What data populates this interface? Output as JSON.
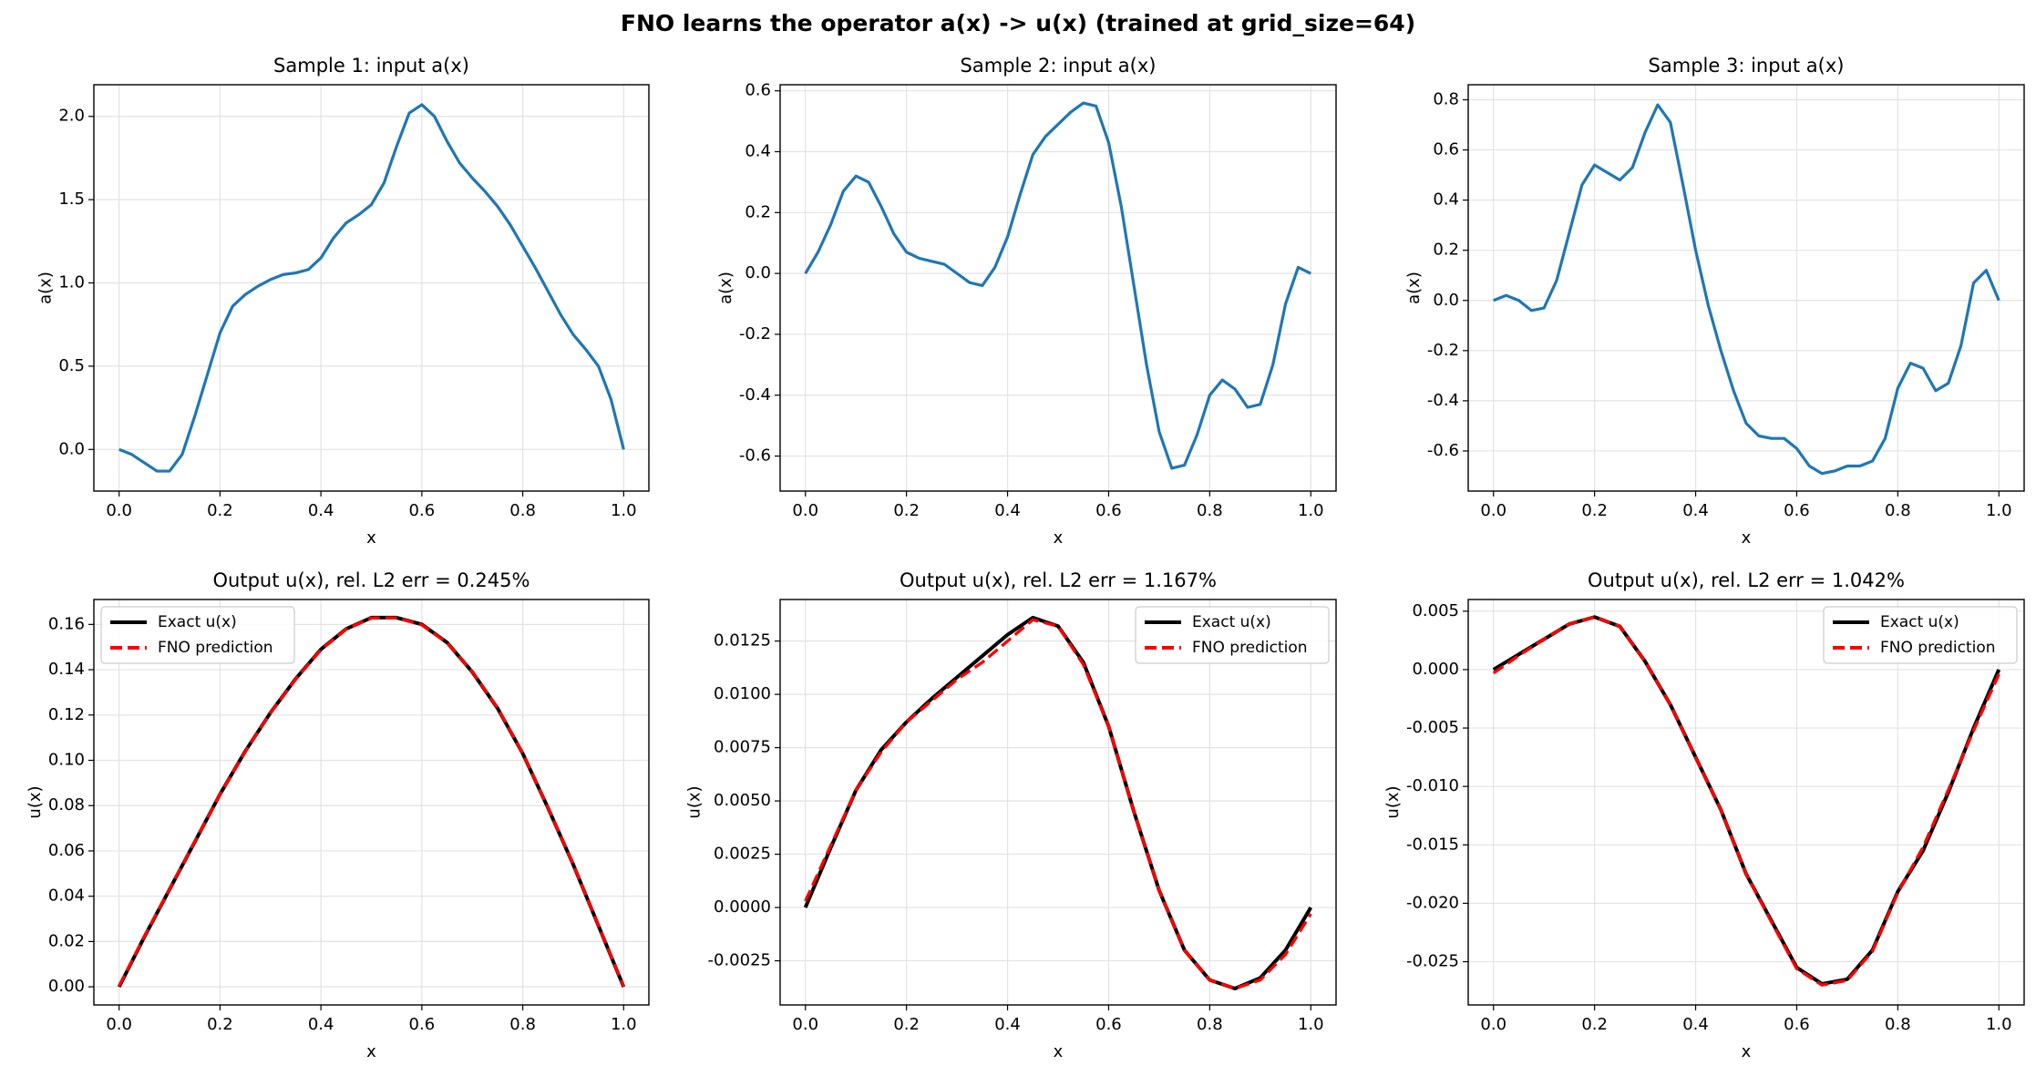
{
  "title": "FNO learns the operator a(x) -> u(x)  (trained at grid_size=64)",
  "chart_data": [
    {
      "type": "line",
      "title": "Sample 1: input a(x)",
      "x_label": "x",
      "y_label": "a(x)",
      "color": "#1f77b4",
      "grid": true,
      "x": [
        0,
        0.025,
        0.05,
        0.075,
        0.1,
        0.125,
        0.15,
        0.175,
        0.2,
        0.225,
        0.25,
        0.275,
        0.3,
        0.325,
        0.35,
        0.375,
        0.4,
        0.425,
        0.45,
        0.475,
        0.5,
        0.525,
        0.55,
        0.575,
        0.6,
        0.625,
        0.65,
        0.675,
        0.7,
        0.725,
        0.75,
        0.775,
        0.8,
        0.825,
        0.85,
        0.875,
        0.9,
        0.925,
        0.95,
        0.975,
        1
      ],
      "values": [
        0,
        -0.03,
        -0.08,
        -0.13,
        -0.13,
        -0.03,
        0.2,
        0.45,
        0.7,
        0.86,
        0.93,
        0.98,
        1.02,
        1.05,
        1.06,
        1.08,
        1.15,
        1.27,
        1.36,
        1.41,
        1.47,
        1.6,
        1.82,
        2.02,
        2.07,
        2.0,
        1.85,
        1.72,
        1.63,
        1.55,
        1.46,
        1.35,
        1.22,
        1.09,
        0.95,
        0.81,
        0.69,
        0.6,
        0.5,
        0.3,
        0
      ],
      "xlim": [
        -0.05,
        1.05
      ],
      "xticks": [
        {
          "value": 0,
          "label": "0.0"
        },
        0.2,
        0.4,
        0.6,
        0.8,
        {
          "value": 1,
          "label": "1.0"
        }
      ],
      "ylim": [
        -0.25,
        2.19
      ],
      "yticks": [
        {
          "value": 0,
          "label": "0.0"
        },
        0.5,
        {
          "value": 1,
          "label": "1.0"
        },
        1.5,
        {
          "value": 2,
          "label": "2.0"
        }
      ]
    },
    {
      "type": "line",
      "title": "Sample 2: input a(x)",
      "x_label": "x",
      "y_label": "a(x)",
      "color": "#1f77b4",
      "grid": true,
      "x": [
        0,
        0.025,
        0.05,
        0.075,
        0.1,
        0.125,
        0.15,
        0.175,
        0.2,
        0.225,
        0.25,
        0.275,
        0.3,
        0.325,
        0.35,
        0.375,
        0.4,
        0.425,
        0.45,
        0.475,
        0.5,
        0.525,
        0.55,
        0.575,
        0.6,
        0.625,
        0.65,
        0.675,
        0.7,
        0.725,
        0.75,
        0.775,
        0.8,
        0.825,
        0.85,
        0.875,
        0.9,
        0.925,
        0.95,
        0.975,
        1
      ],
      "values": [
        0,
        0.07,
        0.16,
        0.27,
        0.32,
        0.3,
        0.22,
        0.13,
        0.07,
        0.05,
        0.04,
        0.03,
        0.0,
        -0.03,
        -0.04,
        0.02,
        0.12,
        0.26,
        0.39,
        0.45,
        0.49,
        0.53,
        0.56,
        0.55,
        0.43,
        0.22,
        -0.04,
        -0.3,
        -0.52,
        -0.64,
        -0.63,
        -0.53,
        -0.4,
        -0.35,
        -0.38,
        -0.44,
        -0.43,
        -0.3,
        -0.1,
        0.02,
        0
      ],
      "xlim": [
        -0.05,
        1.05
      ],
      "xticks": [
        {
          "value": 0,
          "label": "0.0"
        },
        0.2,
        0.4,
        0.6,
        0.8,
        {
          "value": 1,
          "label": "1.0"
        }
      ],
      "ylim": [
        -0.715,
        0.62
      ],
      "yticks": [
        -0.6,
        -0.4,
        -0.2,
        {
          "value": 0,
          "label": "0.0"
        },
        0.2,
        0.4,
        0.6
      ]
    },
    {
      "type": "line",
      "title": "Sample 3: input a(x)",
      "x_label": "x",
      "y_label": "a(x)",
      "color": "#1f77b4",
      "grid": true,
      "x": [
        0,
        0.025,
        0.05,
        0.075,
        0.1,
        0.125,
        0.15,
        0.175,
        0.2,
        0.225,
        0.25,
        0.275,
        0.3,
        0.325,
        0.35,
        0.375,
        0.4,
        0.425,
        0.45,
        0.475,
        0.5,
        0.525,
        0.55,
        0.575,
        0.6,
        0.625,
        0.65,
        0.675,
        0.7,
        0.725,
        0.75,
        0.775,
        0.8,
        0.825,
        0.85,
        0.875,
        0.9,
        0.925,
        0.95,
        0.975,
        1
      ],
      "values": [
        0,
        0.02,
        0.0,
        -0.04,
        -0.03,
        0.08,
        0.27,
        0.46,
        0.54,
        0.51,
        0.48,
        0.53,
        0.67,
        0.78,
        0.71,
        0.46,
        0.2,
        -0.02,
        -0.2,
        -0.36,
        -0.49,
        -0.54,
        -0.55,
        -0.55,
        -0.59,
        -0.66,
        -0.69,
        -0.68,
        -0.66,
        -0.66,
        -0.64,
        -0.55,
        -0.35,
        -0.25,
        -0.27,
        -0.36,
        -0.33,
        -0.18,
        0.07,
        0.12,
        0
      ],
      "xlim": [
        -0.05,
        1.05
      ],
      "xticks": [
        {
          "value": 0,
          "label": "0.0"
        },
        0.2,
        0.4,
        0.6,
        0.8,
        {
          "value": 1,
          "label": "1.0"
        }
      ],
      "ylim": [
        -0.76,
        0.86
      ],
      "yticks": [
        -0.6,
        -0.4,
        -0.2,
        {
          "value": 0,
          "label": "0.0"
        },
        0.2,
        0.4,
        0.6,
        0.8
      ]
    },
    {
      "type": "line",
      "title": "Output u(x), rel. L2 err = 0.245%",
      "x_label": "x",
      "y_label": "u(x)",
      "grid": true,
      "legend": "upper left",
      "x": [
        0,
        0.05,
        0.1,
        0.15,
        0.2,
        0.25,
        0.3,
        0.35,
        0.4,
        0.45,
        0.5,
        0.55,
        0.6,
        0.65,
        0.7,
        0.75,
        0.8,
        0.85,
        0.9,
        0.95,
        1
      ],
      "series": [
        {
          "name": "Exact u(x)",
          "color": "#000000",
          "style": "solid",
          "values": [
            0,
            0.022,
            0.043,
            0.064,
            0.085,
            0.104,
            0.121,
            0.136,
            0.149,
            0.158,
            0.163,
            0.163,
            0.16,
            0.152,
            0.139,
            0.123,
            0.103,
            0.079,
            0.054,
            0.027,
            0
          ]
        },
        {
          "name": "FNO prediction",
          "color": "#ff0000",
          "style": "dashed",
          "values": [
            0.0003,
            0.0222,
            0.0431,
            0.0641,
            0.0849,
            0.1039,
            0.1209,
            0.1358,
            0.1488,
            0.1579,
            0.1628,
            0.1629,
            0.1598,
            0.1519,
            0.1391,
            0.1232,
            0.1031,
            0.0791,
            0.0541,
            0.0271,
            0.0002
          ]
        }
      ],
      "xlim": [
        -0.05,
        1.05
      ],
      "xticks": [
        {
          "value": 0,
          "label": "0.0"
        },
        0.2,
        0.4,
        0.6,
        0.8,
        {
          "value": 1,
          "label": "1.0"
        }
      ],
      "ylim": [
        -0.008,
        0.171
      ],
      "yticks": [
        {
          "value": 0,
          "label": "0.00"
        },
        0.02,
        0.04,
        0.06,
        0.08,
        {
          "value": 0.1,
          "label": "0.10"
        },
        0.12,
        0.14,
        0.16
      ]
    },
    {
      "type": "line",
      "title": "Output u(x), rel. L2 err = 1.167%",
      "x_label": "x",
      "y_label": "u(x)",
      "grid": true,
      "legend": "upper right",
      "x": [
        0,
        0.05,
        0.1,
        0.15,
        0.2,
        0.25,
        0.3,
        0.35,
        0.4,
        0.45,
        0.5,
        0.55,
        0.6,
        0.65,
        0.7,
        0.75,
        0.8,
        0.85,
        0.9,
        0.95,
        1
      ],
      "series": [
        {
          "name": "Exact u(x)",
          "color": "#000000",
          "style": "solid",
          "values": [
            0,
            0.0028,
            0.0055,
            0.0074,
            0.0087,
            0.0098,
            0.0108,
            0.0118,
            0.0128,
            0.0136,
            0.0132,
            0.0115,
            0.0085,
            0.0045,
            0.0008,
            -0.002,
            -0.0034,
            -0.0038,
            -0.0033,
            -0.002,
            0
          ]
        },
        {
          "name": "FNO prediction",
          "color": "#ff0000",
          "style": "dashed",
          "values": [
            0.0003,
            0.0029,
            0.0055,
            0.0073,
            0.0087,
            0.0097,
            0.0107,
            0.0115,
            0.0125,
            0.0135,
            0.0132,
            0.0114,
            0.0085,
            0.0045,
            0.0008,
            -0.002,
            -0.0034,
            -0.0038,
            -0.0034,
            -0.0022,
            -0.0003
          ]
        }
      ],
      "xlim": [
        -0.05,
        1.05
      ],
      "xticks": [
        {
          "value": 0,
          "label": "0.0"
        },
        0.2,
        0.4,
        0.6,
        0.8,
        {
          "value": 1,
          "label": "1.0"
        }
      ],
      "ylim": [
        -0.00457,
        0.01445
      ],
      "yticks": [
        -0.0025,
        {
          "value": 0,
          "label": "0.0000"
        },
        0.0025,
        {
          "value": 0.005,
          "label": "0.0050"
        },
        0.0075,
        {
          "value": 0.01,
          "label": "0.0100"
        },
        0.0125
      ]
    },
    {
      "type": "line",
      "title": "Output u(x), rel. L2 err = 1.042%",
      "x_label": "x",
      "y_label": "u(x)",
      "grid": true,
      "legend": "upper right",
      "x": [
        0,
        0.05,
        0.1,
        0.15,
        0.2,
        0.25,
        0.3,
        0.35,
        0.4,
        0.45,
        0.5,
        0.55,
        0.6,
        0.65,
        0.7,
        0.75,
        0.8,
        0.85,
        0.9,
        0.95,
        1
      ],
      "series": [
        {
          "name": "Exact u(x)",
          "color": "#000000",
          "style": "solid",
          "values": [
            0,
            0.0013,
            0.0026,
            0.0039,
            0.0045,
            0.0037,
            0.0007,
            -0.003,
            -0.0075,
            -0.012,
            -0.0175,
            -0.0215,
            -0.0255,
            -0.0269,
            -0.0265,
            -0.024,
            -0.019,
            -0.0155,
            -0.0105,
            -0.005,
            0
          ]
        },
        {
          "name": "FNO prediction",
          "color": "#ff0000",
          "style": "dashed",
          "values": [
            -0.0003,
            0.0012,
            0.0026,
            0.0039,
            0.0045,
            0.0037,
            0.0007,
            -0.003,
            -0.0075,
            -0.012,
            -0.0175,
            -0.0216,
            -0.0256,
            -0.027,
            -0.0266,
            -0.0241,
            -0.0191,
            -0.0152,
            -0.0103,
            -0.0052,
            -0.0004
          ]
        }
      ],
      "xlim": [
        -0.05,
        1.05
      ],
      "xticks": [
        {
          "value": 0,
          "label": "0.0"
        },
        0.2,
        0.4,
        0.6,
        0.8,
        {
          "value": 1,
          "label": "1.0"
        }
      ],
      "ylim": [
        -0.0287,
        0.006
      ],
      "yticks": [
        -0.025,
        {
          "value": -0.02,
          "label": "-0.020"
        },
        -0.015,
        {
          "value": -0.01,
          "label": "-0.010"
        },
        -0.005,
        {
          "value": 0,
          "label": "0.000"
        },
        0.005
      ]
    }
  ]
}
